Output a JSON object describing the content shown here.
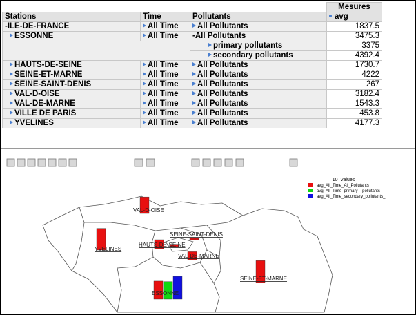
{
  "table": {
    "measure_header": "Mesures",
    "columns": [
      "Stations",
      "Time",
      "Pollutants",
      "avg"
    ],
    "rows": [
      [
        "-ILE-DE-FRANCE",
        "All Time",
        "All Pollutants",
        1837.5
      ],
      [
        "ESSONNE",
        "All Time",
        "-All Pollutants",
        3475.3
      ],
      [
        null,
        null,
        "primary pollutants",
        3375
      ],
      [
        null,
        null,
        "secondary pollutants",
        4392.4
      ],
      [
        "HAUTS-DE-SEINE",
        "All Time",
        "All Pollutants",
        1730.7
      ],
      [
        "SEINE-ET-MARNE",
        "All Time",
        "All Pollutants",
        4222
      ],
      [
        "SEINE-SAINT-DENIS",
        "All Time",
        "All Pollutants",
        267
      ],
      [
        "VAL-D-OISE",
        "All Time",
        "All Pollutants",
        3182.4
      ],
      [
        "VAL-DE-MARNE",
        "All Time",
        "All Pollutants",
        1543.3
      ],
      [
        "VILLE DE PARIS",
        "All Time",
        "All Pollutants",
        453.8
      ],
      [
        "YVELINES",
        "All Time",
        "All Pollutants",
        4177.3
      ]
    ]
  },
  "map": {
    "legend_title": "10_Values",
    "legend": [
      {
        "label": "avg_All_Time_All_Pollutants",
        "color": "#e81010"
      },
      {
        "label": "avg_All_Time_primary__pollutants",
        "color": "#10d810"
      },
      {
        "label": "avg_All_Time_secondary_pollutants_",
        "color": "#1010e0"
      }
    ],
    "labels": [
      "VAL-D-OISE",
      "YVELINES",
      "HAUTS-DE-SEINE",
      "SEINE-SAINT-DENIS",
      "VAL-DE-MARNE",
      "SEINE-ET-MARNE",
      "ESSONNE"
    ]
  }
}
